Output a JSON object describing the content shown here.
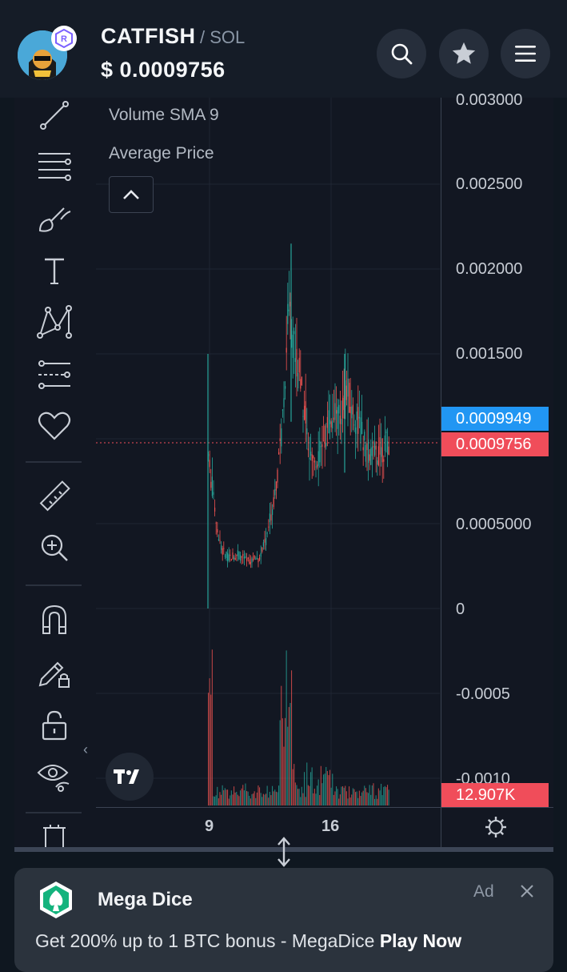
{
  "header": {
    "token_name": "CATFISH",
    "pair_separator": "/",
    "pair_quote": "SOL",
    "price": "$ 0.0009756",
    "icons": [
      "search-icon",
      "star-icon",
      "menu-icon"
    ]
  },
  "chart": {
    "legend": [
      "Volume SMA 9",
      "Average Price"
    ],
    "price_axis": [
      "0.003000",
      "0.002500",
      "0.002000",
      "0.001500",
      "0.0005000",
      "0",
      "-0.0005",
      "-0.0010"
    ],
    "price_tags": {
      "blue": "0.0009949",
      "red": "0.0009756",
      "volume": "12.907K"
    },
    "time_axis": [
      "9",
      "16"
    ],
    "colors": {
      "up": "#26a69a",
      "down": "#ef5350",
      "tag_blue": "#2196f3",
      "tag_red": "#f04d5a"
    }
  },
  "toolbar": {
    "tools": [
      "trend-line-icon",
      "fib-icon",
      "brush-icon",
      "text-icon",
      "pattern-icon",
      "forecast-icon",
      "favorite-icon",
      "ruler-icon",
      "zoom-icon",
      "magnet-icon",
      "lock-drawing-icon",
      "unlock-icon",
      "eye-icon",
      "trash-icon"
    ]
  },
  "ad": {
    "brand": "Mega Dice",
    "label": "Ad",
    "text": "Get 200% up to 1 BTC bonus - MegaDice",
    "cta": "Play Now"
  }
}
